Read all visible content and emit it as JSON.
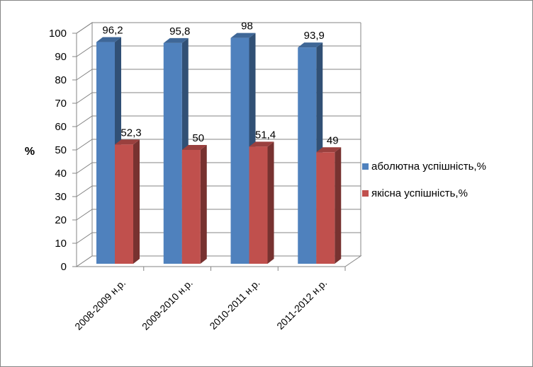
{
  "chart_data": {
    "type": "bar",
    "title": "",
    "xlabel": "",
    "ylabel": "%",
    "ylim": [
      0,
      100
    ],
    "yticks": [
      0,
      10,
      20,
      30,
      40,
      50,
      60,
      70,
      80,
      90,
      100
    ],
    "grid": true,
    "three_d": true,
    "legend_position": "right",
    "categories": [
      "2008-2009 н.р.",
      "2009-2010 н.р.",
      "2010-2011 н.р.",
      "2011-2012 н.р."
    ],
    "series": [
      {
        "name": "аболютна успішність,%",
        "values": [
          96.2,
          95.8,
          98,
          93.9
        ],
        "labels": [
          "96,2",
          "95,8",
          "98",
          "93,9"
        ],
        "color": "#4F81BD"
      },
      {
        "name": "якісна успішність,%",
        "values": [
          52.3,
          50,
          51.4,
          49
        ],
        "labels": [
          "52,3",
          "50",
          "51,4",
          "49"
        ],
        "color": "#C0504D"
      }
    ]
  }
}
